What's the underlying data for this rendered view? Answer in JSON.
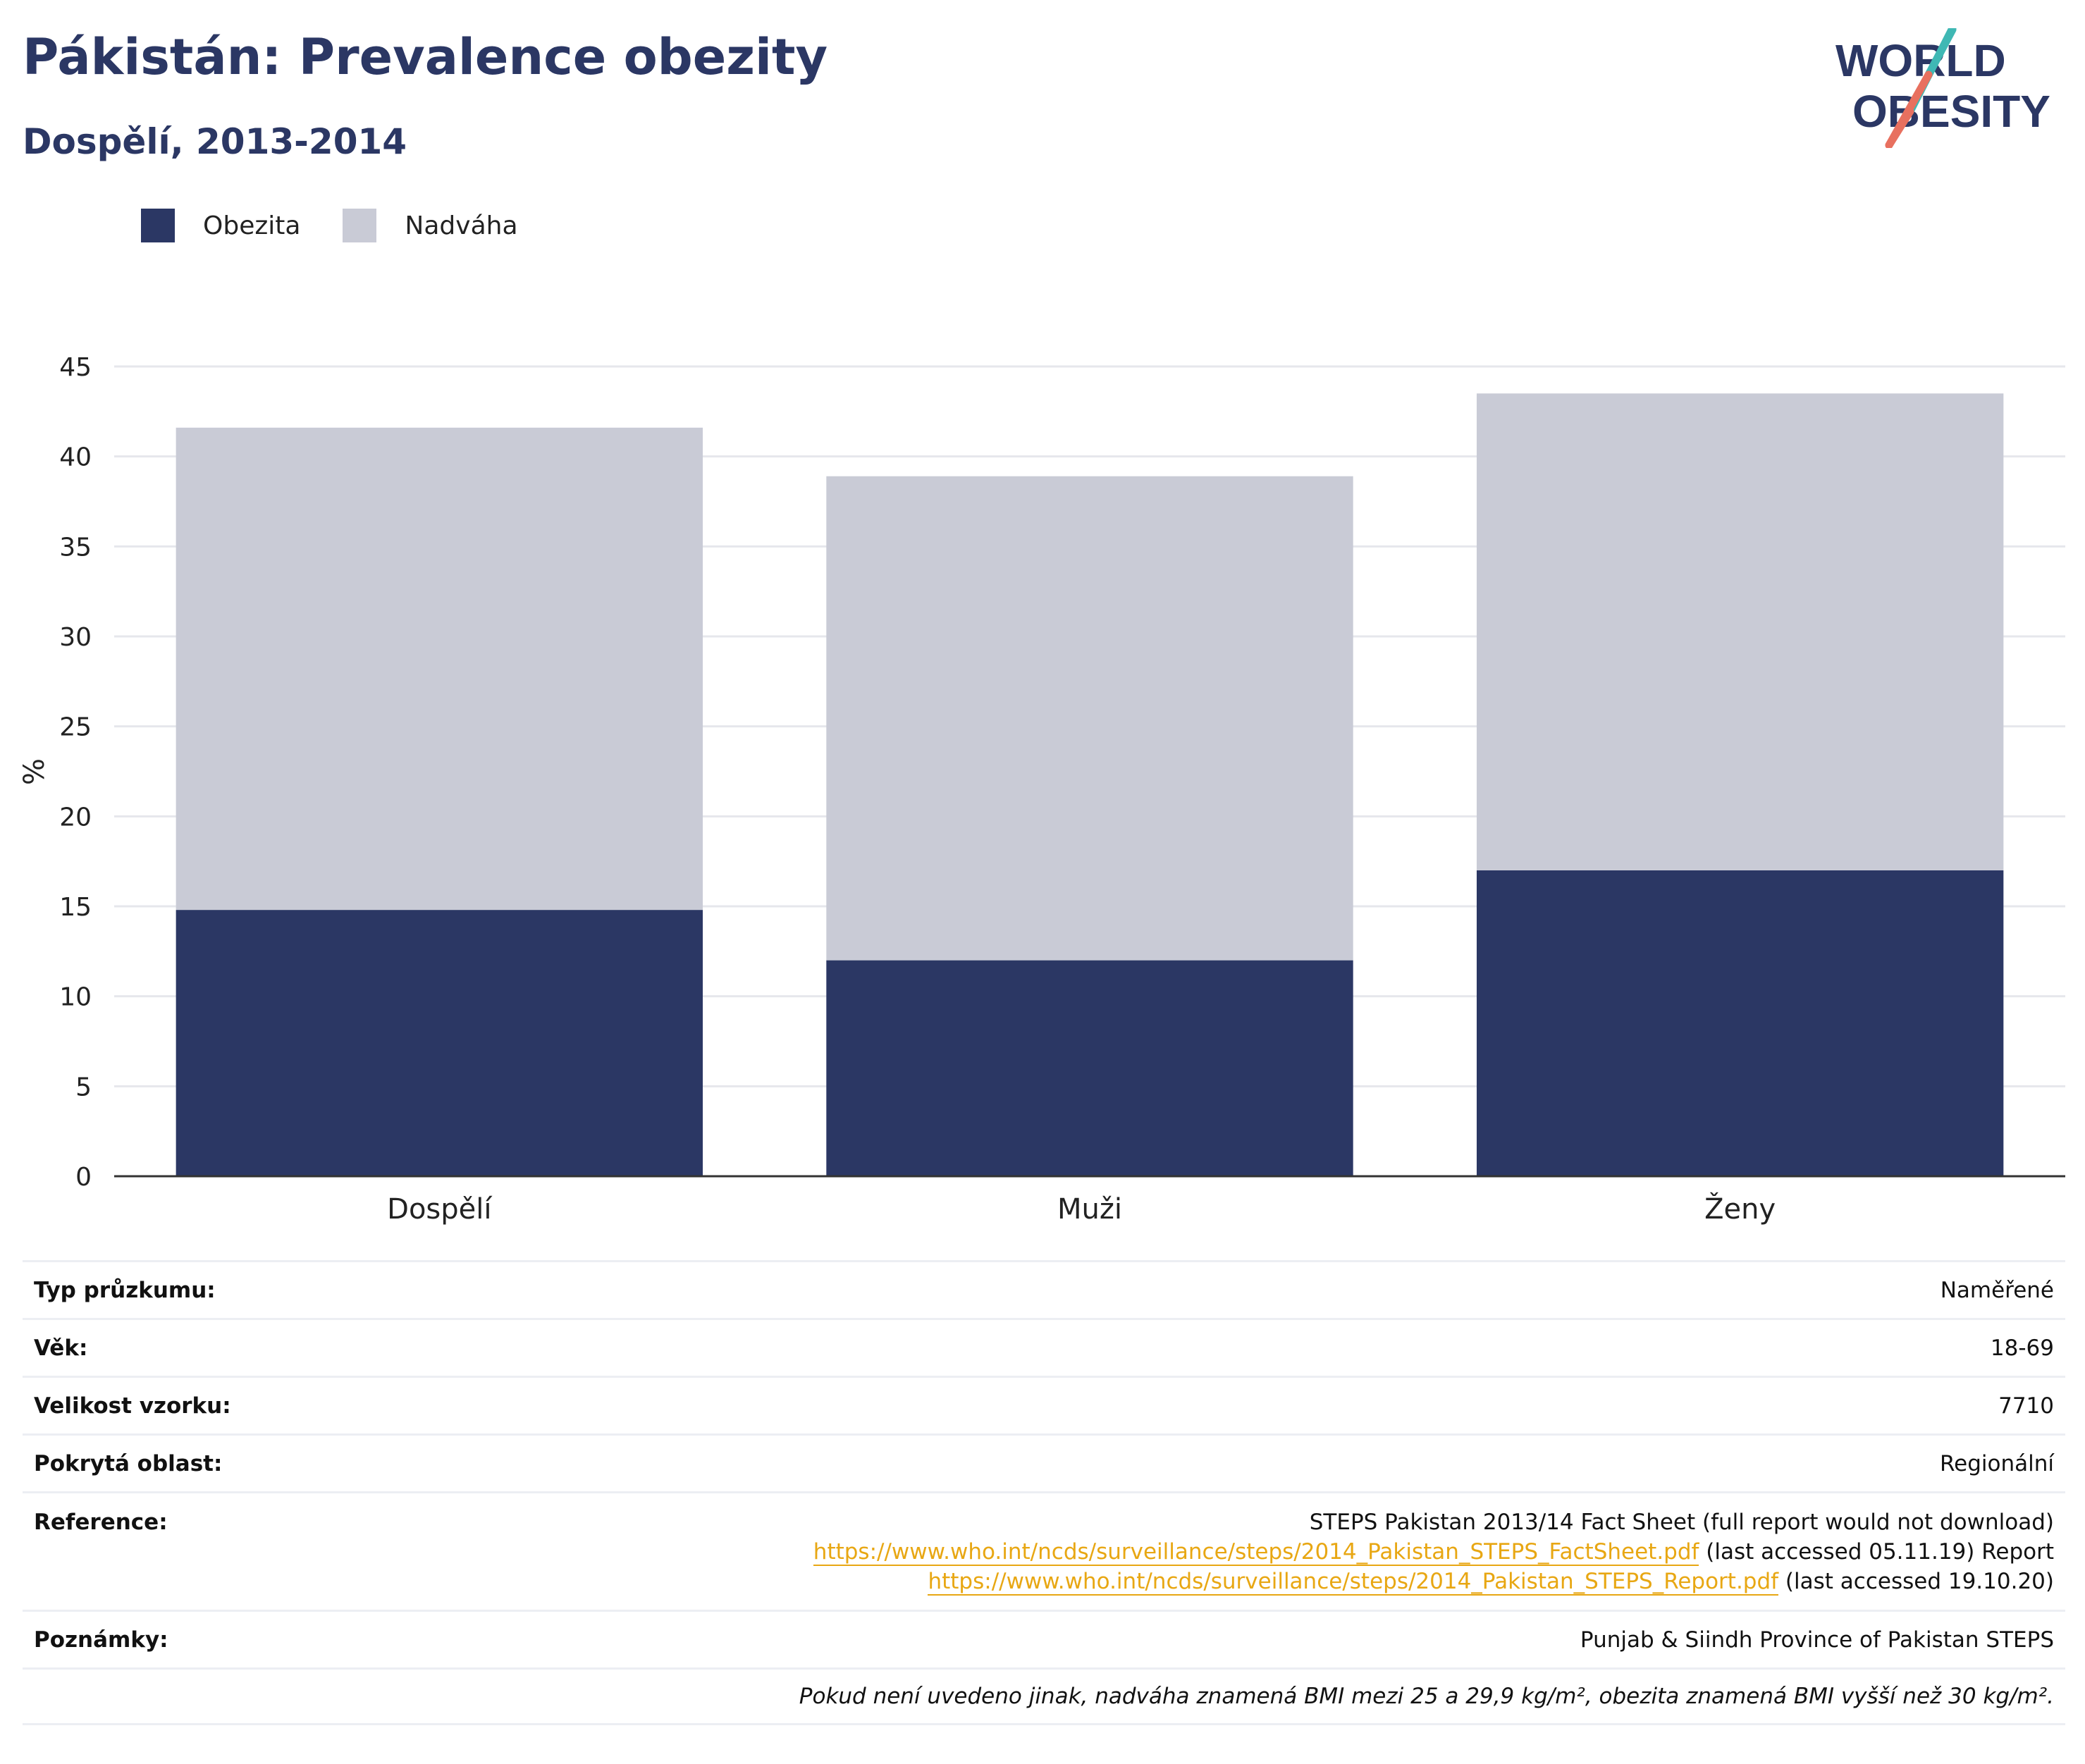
{
  "header": {
    "title": "Pákistán: Prevalence obezity",
    "subtitle": "Dospělí, 2013-2014",
    "logo_line1": "WORLD",
    "logo_line2": "OBESITY"
  },
  "colors": {
    "obezita": "#2b3764",
    "nadvaha": "#c9cbd6",
    "title": "#2b3764",
    "link": "#e8a713",
    "logo_teal": "#3fb8b4",
    "logo_coral": "#e8705f"
  },
  "chart_data": {
    "type": "bar",
    "stacked": true,
    "categories": [
      "Dospělí",
      "Muži",
      "Ženy"
    ],
    "series": [
      {
        "name": "Obezita",
        "values": [
          14.8,
          12.0,
          17.0
        ]
      },
      {
        "name": "Nadváha",
        "values": [
          26.8,
          26.9,
          26.5
        ]
      }
    ],
    "ylabel": "%",
    "xlabel": "",
    "ylim": [
      0,
      45
    ],
    "yticks": [
      0,
      5,
      10,
      15,
      20,
      25,
      30,
      35,
      40,
      45
    ],
    "grid": true,
    "legend_position": "top-left"
  },
  "info": {
    "survey_type_label": "Typ průzkumu:",
    "survey_type_value": "Naměřené",
    "age_label": "Věk:",
    "age_value": "18-69",
    "sample_label": "Velikost vzorku:",
    "sample_value": "7710",
    "area_label": "Pokrytá oblast:",
    "area_value": "Regionální",
    "reference_label": "Reference:",
    "reference_line1": "STEPS Pakistan 2013/14 Fact Sheet (full report would not download)",
    "reference_link1": "https://www.who.int/ncds/surveillance/steps/2014_Pakistan_STEPS_FactSheet.pdf",
    "reference_after1": " (last accessed 05.11.19) Report",
    "reference_link2": "https://www.who.int/ncds/surveillance/steps/2014_Pakistan_STEPS_Report.pdf",
    "reference_after2": " (last accessed 19.10.20)",
    "notes_label": "Poznámky:",
    "notes_value": "Punjab & Siindh Province of Pakistan STEPS",
    "footnote": "Pokud není uvedeno jinak, nadváha znamená BMI mezi 25 a 29,9 kg/m², obezita znamená BMI vyšší než 30 kg/m²."
  }
}
